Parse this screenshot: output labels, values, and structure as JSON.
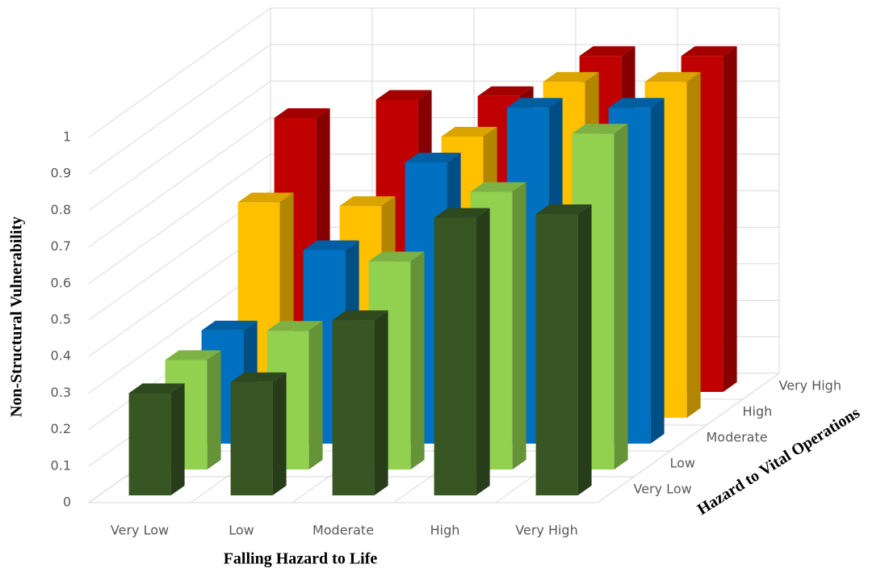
{
  "chart_data": {
    "type": "bar3d",
    "xlabel": "Falling Hazard to Life",
    "ylabel": "Non-Structural Vulnerability",
    "zlabel": "Hazard to Vital Operations",
    "categories": [
      "Very Low",
      "Low",
      "Moderate",
      "High",
      "Very High"
    ],
    "series": [
      {
        "name": "Very Low",
        "color": "#375623",
        "values": [
          0.28,
          0.31,
          0.48,
          0.76,
          0.77
        ]
      },
      {
        "name": "Low",
        "color": "#92d050",
        "values": [
          0.3,
          0.38,
          0.57,
          0.76,
          0.92
        ]
      },
      {
        "name": "Moderate",
        "color": "#0070c0",
        "values": [
          0.31,
          0.53,
          0.77,
          0.92,
          0.92
        ]
      },
      {
        "name": "High",
        "color": "#ffc000",
        "values": [
          0.59,
          0.58,
          0.77,
          0.92,
          0.92
        ]
      },
      {
        "name": "Very High",
        "color": "#c00000",
        "values": [
          0.75,
          0.8,
          0.81,
          0.92,
          0.92
        ]
      }
    ],
    "ylim": [
      0,
      1
    ],
    "yticks": [
      0,
      0.1,
      0.2,
      0.3,
      0.4,
      0.5,
      0.6,
      0.7,
      0.8,
      0.9,
      1
    ],
    "grid": true
  }
}
